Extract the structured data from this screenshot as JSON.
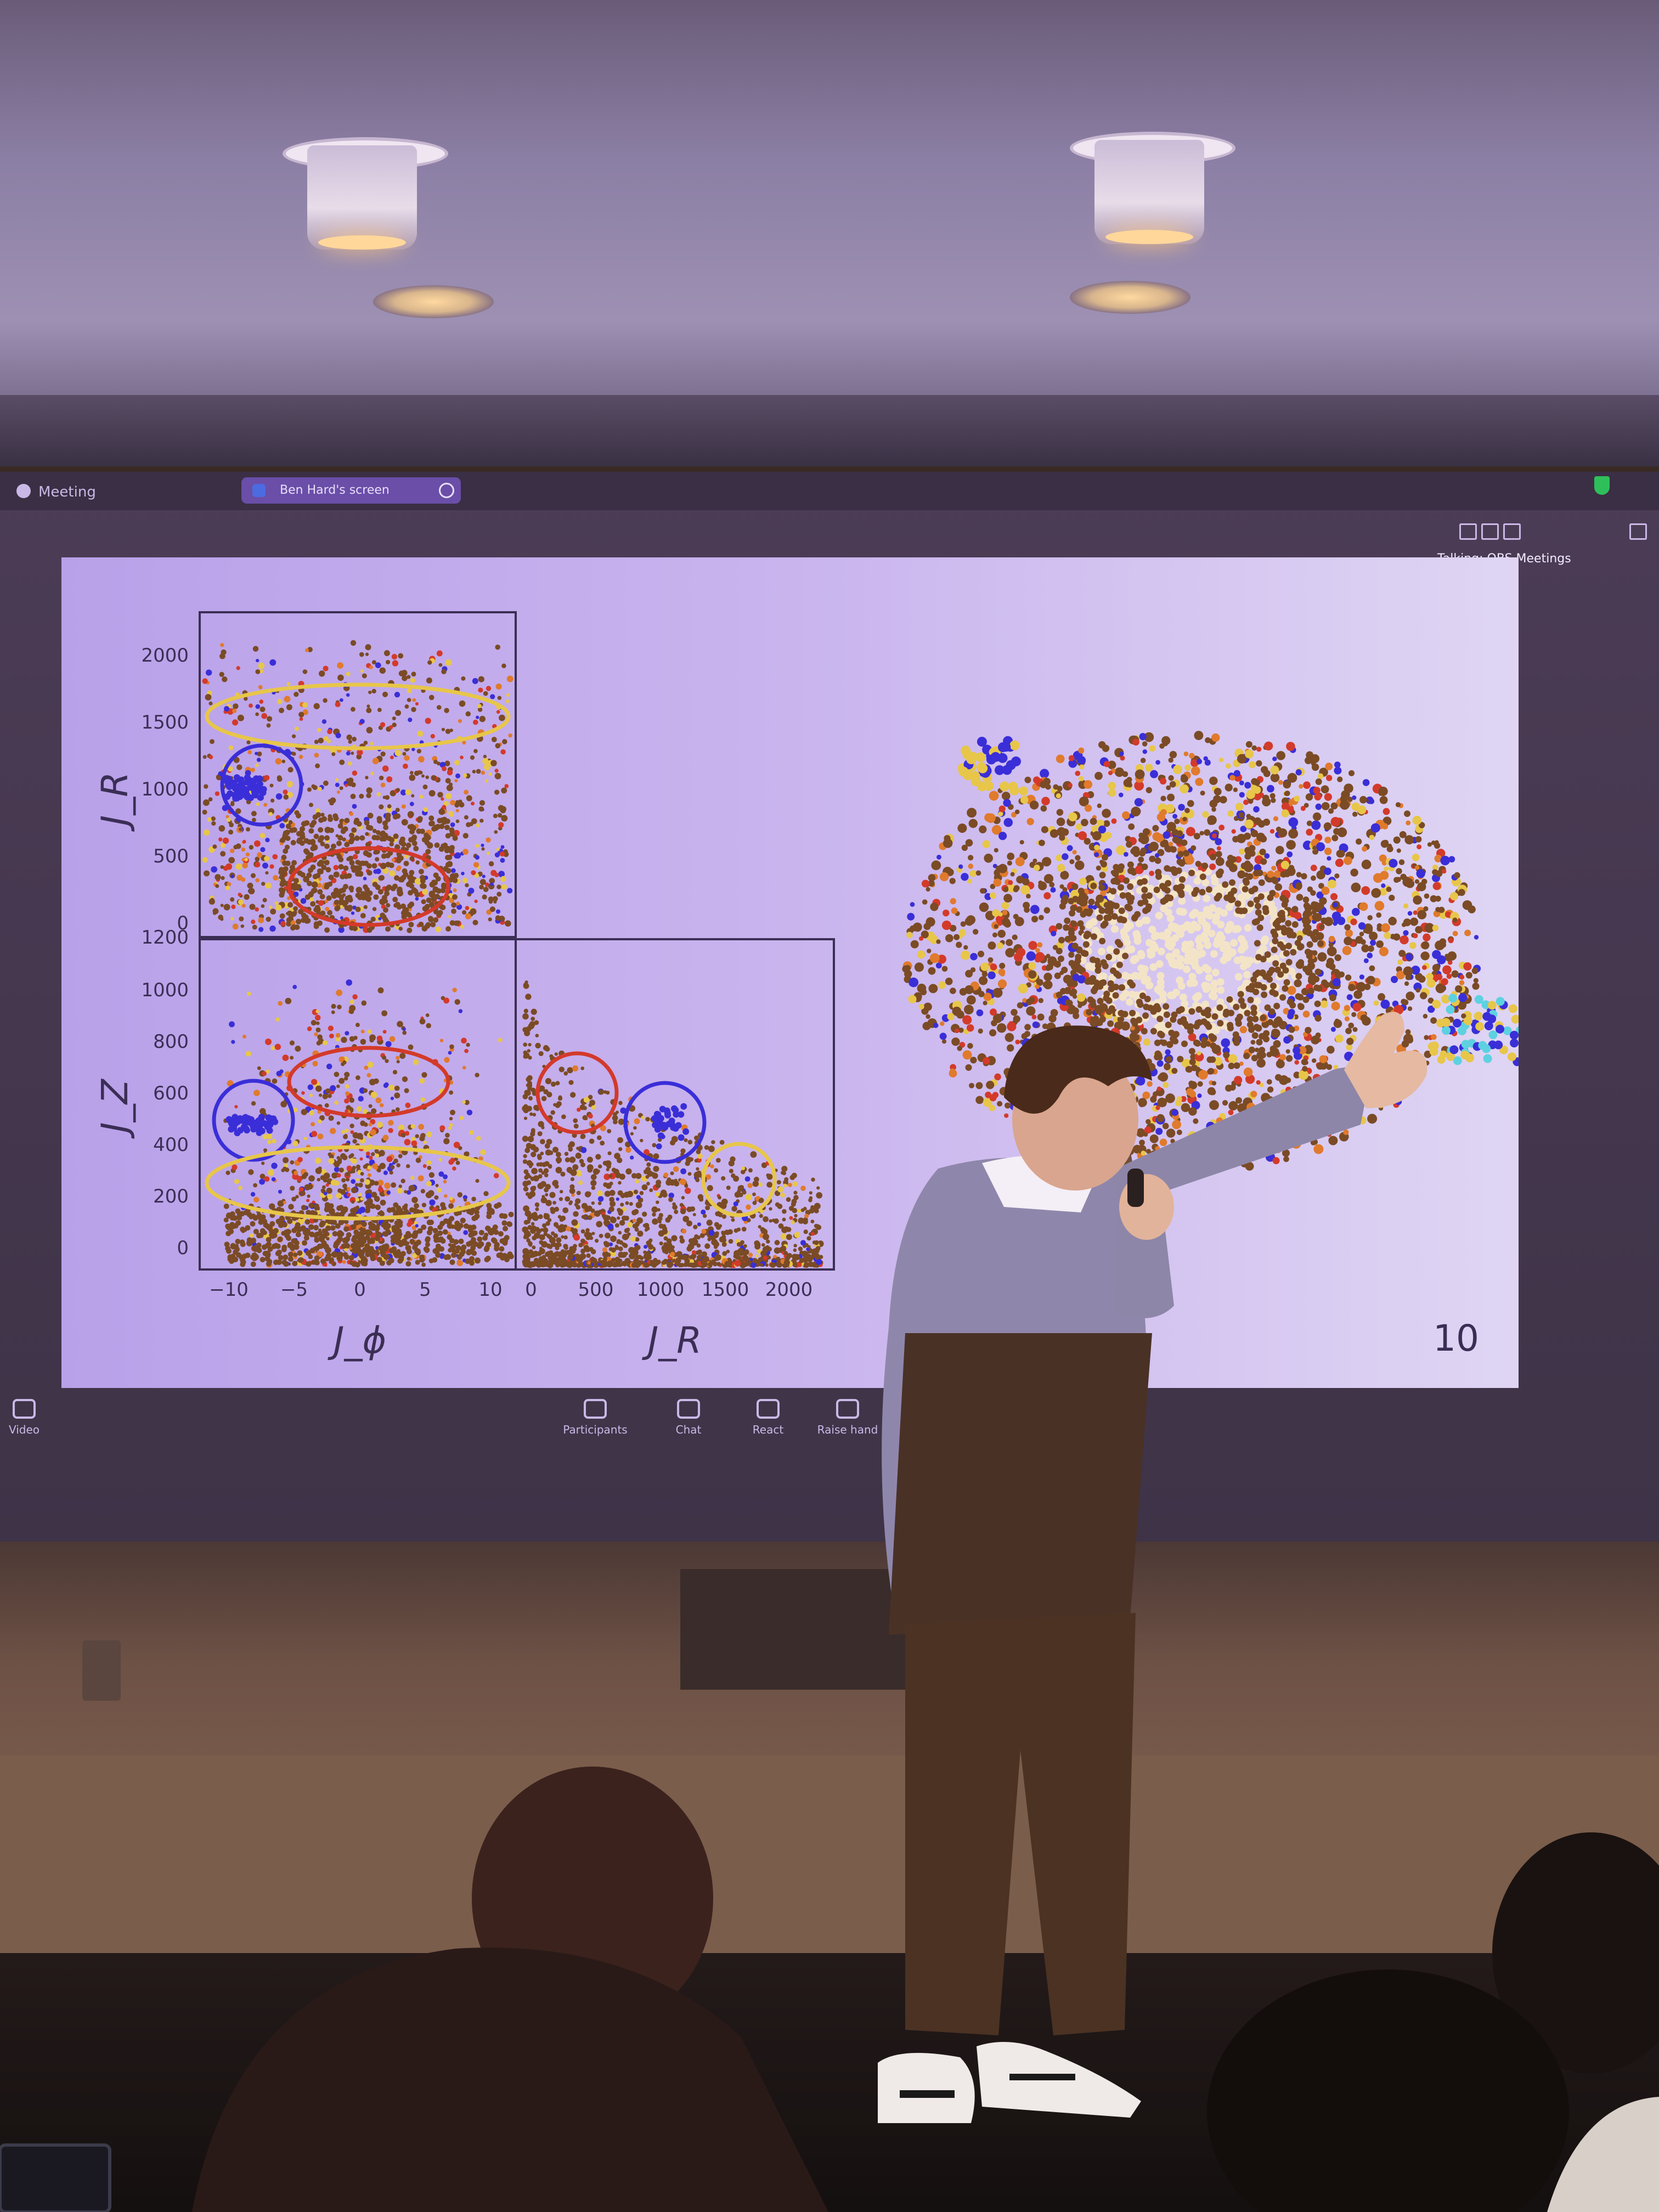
{
  "zoom": {
    "meeting_label": "Meeting",
    "share_label": "Ben Hard's screen",
    "talking_label": "Talking: OBS Meetings",
    "controls": [
      {
        "label": "Video",
        "icon": "video-icon"
      },
      {
        "label": "Participants",
        "icon": "participants-icon"
      },
      {
        "label": "Chat",
        "icon": "chat-icon"
      },
      {
        "label": "React",
        "icon": "react-icon"
      },
      {
        "label": "Raise hand",
        "icon": "raise-hand-icon"
      }
    ]
  },
  "slide": {
    "page_number": "10",
    "panels": {
      "top_left": {
        "ylabel": "J_R",
        "yticks": [
          "2000",
          "1500",
          "1000",
          "500",
          "0"
        ]
      },
      "bottom_left": {
        "ylabel": "J_Z",
        "yticks": [
          "1200",
          "1000",
          "800",
          "600",
          "400",
          "200",
          "0"
        ],
        "xlabel": "J_ϕ",
        "xticks": [
          "−10",
          "−5",
          "0",
          "5",
          "10"
        ]
      },
      "bottom_right": {
        "xlabel": "J_R",
        "xticks": [
          "0",
          "500",
          "1000",
          "1500",
          "2000"
        ]
      }
    },
    "colors": {
      "background": "#ddd0f2",
      "brown": "#7a4b25",
      "orange": "#e07a2c",
      "blue": "#3a2ed8",
      "yellow": "#e7c64a",
      "cyan": "#5ed1e0",
      "cream": "#f3e4c8",
      "red": "#d33a2a"
    }
  }
}
